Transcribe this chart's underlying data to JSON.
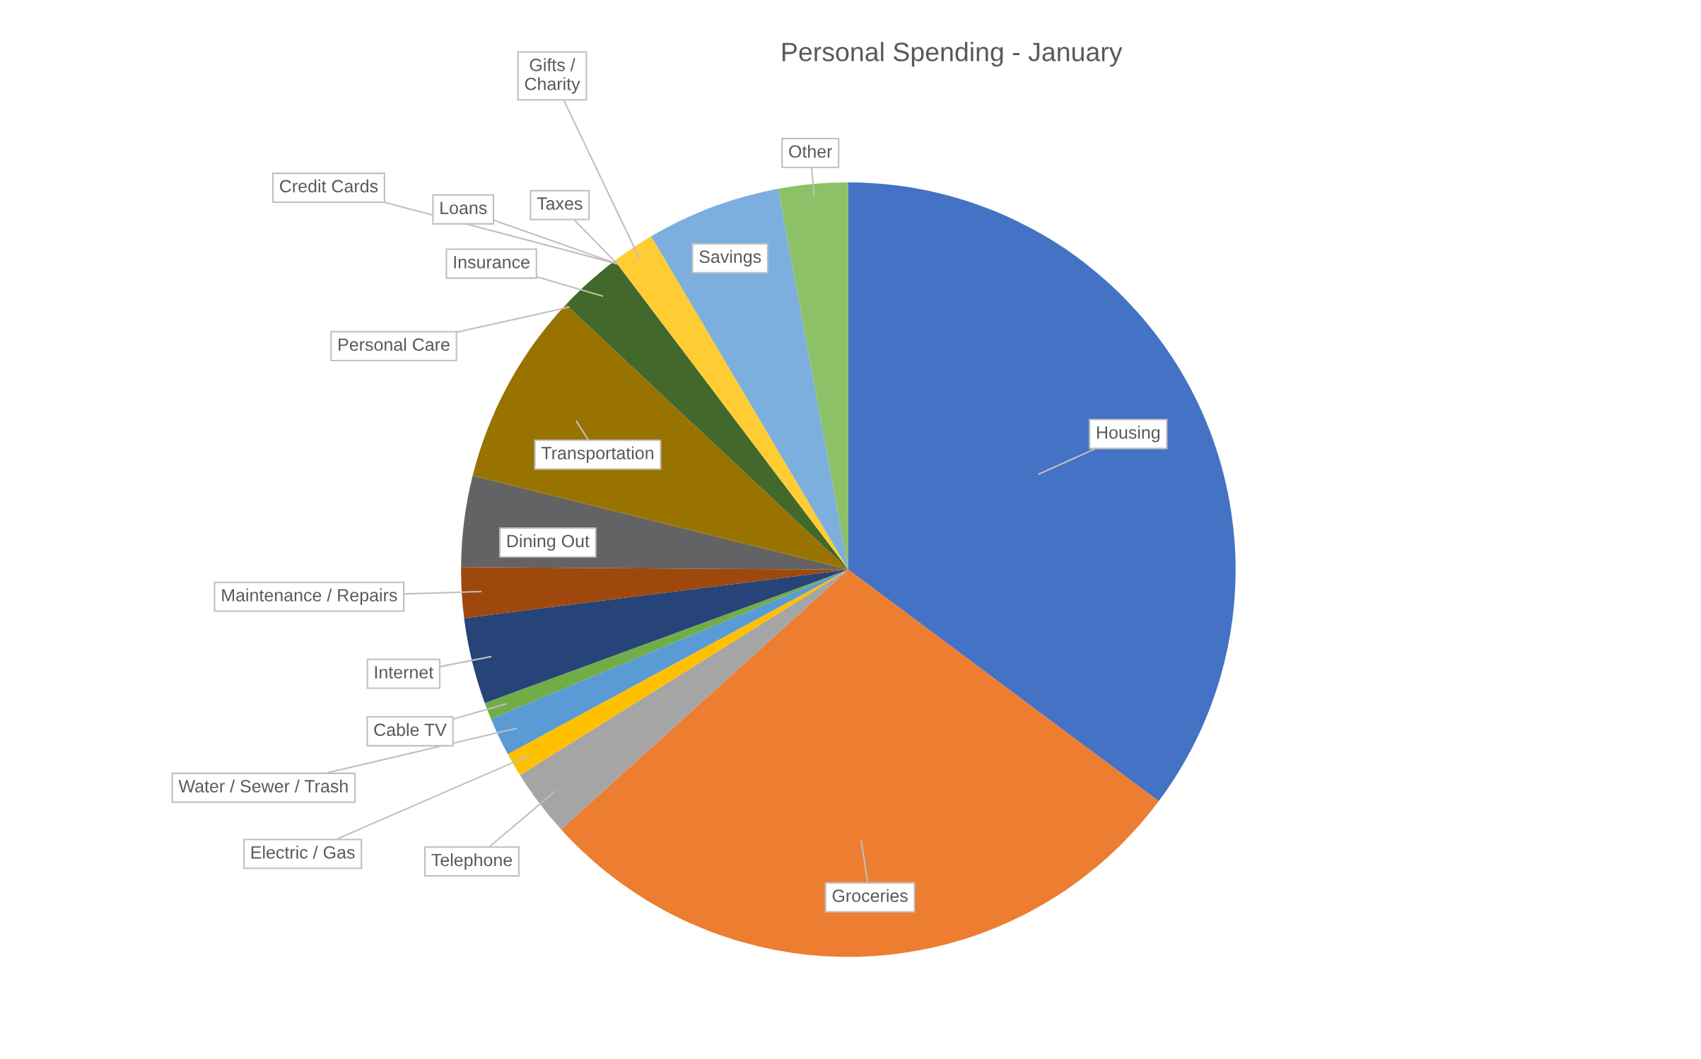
{
  "chart_data": {
    "type": "pie",
    "title": "Personal Spending - January",
    "categories": [
      "Housing",
      "Groceries",
      "Telephone",
      "Electric / Gas",
      "Water / Sewer / Trash",
      "Cable TV",
      "Internet",
      "Maintenance / Repairs",
      "Dining Out",
      "Transportation",
      "Personal Care",
      "Insurance",
      "Credit Cards",
      "Loans",
      "Taxes",
      "Gifts /\nCharity",
      "Savings",
      "Other"
    ],
    "values": [
      35.2,
      28.1,
      2.8,
      1.0,
      1.6,
      0.7,
      3.6,
      2.1,
      3.8,
      8.1,
      0,
      2.7,
      0,
      0,
      0,
      1.8,
      5.6,
      2.9
    ],
    "colors": [
      "#4472c4",
      "#ed7d31",
      "#a5a5a5",
      "#ffc000",
      "#5b9bd5",
      "#70ad47",
      "#264478",
      "#9e480e",
      "#636363",
      "#997300",
      "#255e91",
      "#43682b",
      "#698ed0",
      "#f1975a",
      "#b7b7b7",
      "#ffcd33",
      "#7cafdd",
      "#8cc168"
    ]
  }
}
